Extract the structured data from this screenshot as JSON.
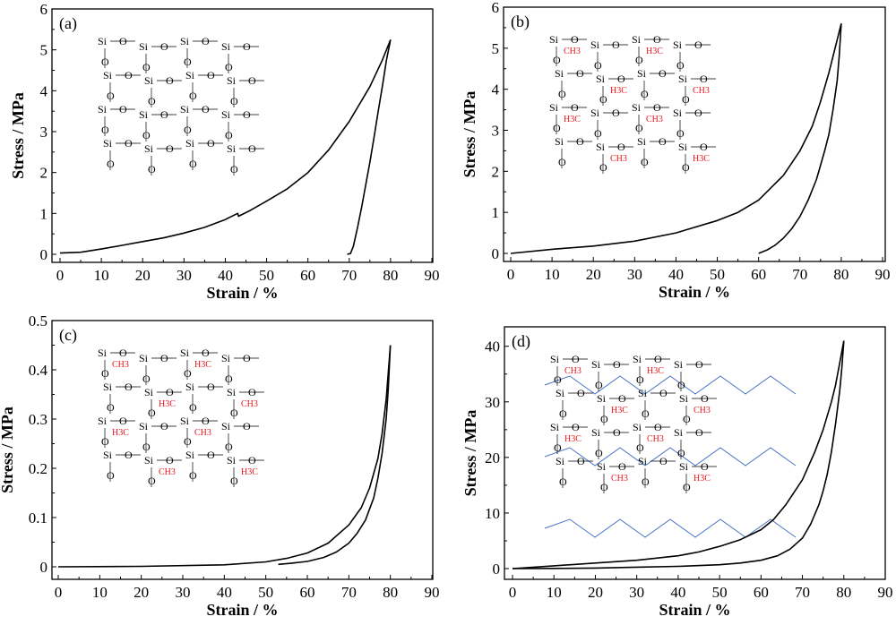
{
  "chart_data": [
    {
      "type": "line",
      "panel_label": "(a)",
      "xlabel": "Strain / %",
      "ylabel": "Stress / MPa",
      "xlim": [
        0,
        90
      ],
      "ylim": [
        0,
        6
      ],
      "xticks": [
        0,
        10,
        20,
        30,
        40,
        50,
        60,
        70,
        80,
        90
      ],
      "yticks": [
        0,
        1,
        2,
        3,
        4,
        5,
        6
      ],
      "grid": false,
      "line_color": "#000000",
      "series": [
        {
          "x": [
            0,
            5,
            10,
            15,
            20,
            25,
            30,
            35,
            40,
            43,
            43.2,
            46,
            50,
            55,
            60,
            65,
            70,
            75,
            78,
            80
          ],
          "y": [
            0.03,
            0.05,
            0.13,
            0.22,
            0.31,
            0.4,
            0.52,
            0.66,
            0.85,
            1.0,
            0.93,
            1.07,
            1.3,
            1.6,
            2.0,
            2.55,
            3.25,
            4.1,
            4.75,
            5.25
          ]
        },
        {
          "x": [
            80,
            79,
            78,
            77,
            76,
            75,
            74,
            73,
            72,
            71,
            70.3,
            69.5
          ],
          "y": [
            5.25,
            4.75,
            4.1,
            3.5,
            2.85,
            2.25,
            1.7,
            1.15,
            0.65,
            0.2,
            0.02,
            0.0
          ]
        }
      ],
      "inset": {
        "atoms": [
          "Si",
          "O"
        ],
        "methyl": [],
        "chain": false
      }
    },
    {
      "type": "line",
      "panel_label": "(b)",
      "xlabel": "Strain / %",
      "ylabel": "Stress / MPa",
      "xlim": [
        0,
        90
      ],
      "ylim": [
        0,
        6
      ],
      "xticks": [
        0,
        10,
        20,
        30,
        40,
        50,
        60,
        70,
        80,
        90
      ],
      "yticks": [
        0,
        1,
        2,
        3,
        4,
        5,
        6
      ],
      "grid": false,
      "line_color": "#000000",
      "series": [
        {
          "x": [
            0,
            10,
            20,
            30,
            40,
            50,
            55,
            60,
            64,
            65,
            66,
            70,
            73,
            75,
            77,
            78,
            79,
            80
          ],
          "y": [
            0,
            0.1,
            0.18,
            0.3,
            0.5,
            0.8,
            1.0,
            1.3,
            1.7,
            1.8,
            1.9,
            2.5,
            3.1,
            3.7,
            4.4,
            4.8,
            5.2,
            5.6
          ]
        },
        {
          "x": [
            80,
            79.5,
            79,
            78,
            77,
            76,
            75,
            74,
            72,
            70,
            68,
            66,
            64,
            62,
            60
          ],
          "y": [
            5.6,
            4.8,
            4.2,
            3.5,
            2.9,
            2.5,
            2.15,
            1.8,
            1.3,
            0.9,
            0.6,
            0.37,
            0.2,
            0.08,
            0
          ]
        }
      ],
      "inset": {
        "atoms": [
          "Si",
          "O"
        ],
        "methyl": [
          "CH3",
          "H3C"
        ],
        "chain": false
      }
    },
    {
      "type": "line",
      "panel_label": "(c)",
      "xlabel": "Strain / %",
      "ylabel": "Stress / MPa",
      "xlim": [
        0,
        90
      ],
      "ylim": [
        0,
        0.5
      ],
      "xticks": [
        0,
        10,
        20,
        30,
        40,
        50,
        60,
        70,
        80,
        90
      ],
      "yticks": [
        0,
        0.1,
        0.2,
        0.3,
        0.4,
        0.5
      ],
      "grid": false,
      "line_color": "#000000",
      "series": [
        {
          "x": [
            0,
            20,
            40,
            50,
            55,
            60,
            65,
            70,
            73,
            75,
            77,
            78,
            79,
            80
          ],
          "y": [
            0,
            0.001,
            0.004,
            0.01,
            0.017,
            0.028,
            0.048,
            0.085,
            0.12,
            0.16,
            0.22,
            0.27,
            0.34,
            0.45
          ]
        },
        {
          "x": [
            80,
            79.5,
            79,
            78,
            77,
            76,
            74,
            72,
            70,
            67,
            64,
            60,
            56,
            53
          ],
          "y": [
            0.45,
            0.36,
            0.3,
            0.23,
            0.18,
            0.14,
            0.095,
            0.068,
            0.048,
            0.03,
            0.019,
            0.011,
            0.007,
            0.005
          ]
        }
      ],
      "inset": {
        "atoms": [
          "Si",
          "O"
        ],
        "methyl": [
          "CH3",
          "H3C"
        ],
        "chain": false
      }
    },
    {
      "type": "line",
      "panel_label": "(d)",
      "xlabel": "Strain / %",
      "ylabel": "Stress / MPa",
      "xlim": [
        0,
        90
      ],
      "ylim": [
        0,
        43.5
      ],
      "xticks": [
        0,
        10,
        20,
        30,
        40,
        50,
        60,
        70,
        80,
        90
      ],
      "yticks": [
        0,
        10,
        20,
        30,
        40
      ],
      "grid": false,
      "line_color": "#000000",
      "series": [
        {
          "x": [
            0,
            10,
            20,
            30,
            40,
            45,
            50,
            55,
            60,
            63,
            66,
            70,
            73,
            75,
            77,
            78,
            79,
            80
          ],
          "y": [
            0,
            0.5,
            1.0,
            1.5,
            2.3,
            3.0,
            4.0,
            5.2,
            7.0,
            8.8,
            11.5,
            16,
            21,
            25,
            30,
            33,
            37,
            41
          ]
        },
        {
          "x": [
            80,
            79.5,
            79,
            78,
            77,
            76,
            75,
            74,
            72,
            70,
            67,
            64,
            60,
            55,
            50,
            40,
            30,
            20,
            10,
            0
          ],
          "y": [
            41,
            36,
            32,
            26,
            21,
            17,
            14,
            11.5,
            8,
            5.5,
            3.5,
            2.3,
            1.5,
            1.0,
            0.7,
            0.4,
            0.25,
            0.1,
            0.03,
            0
          ]
        }
      ],
      "inset": {
        "atoms": [
          "Si",
          "O"
        ],
        "methyl": [
          "CH3",
          "H3C"
        ],
        "chain": true,
        "chain_color": "#4a72c4"
      }
    }
  ],
  "colors": {
    "methyl": "#e8141a",
    "axis": "#000000"
  }
}
